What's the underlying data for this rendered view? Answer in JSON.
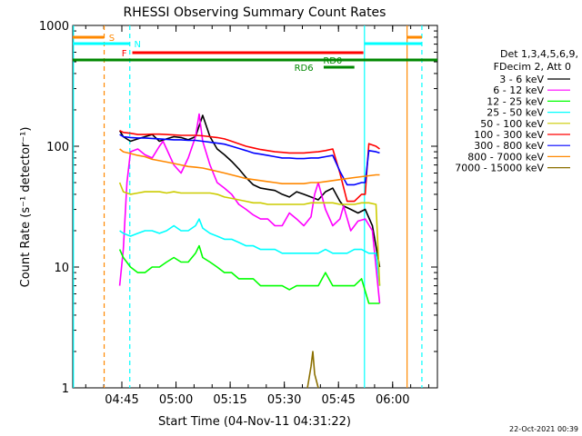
{
  "chart_data": {
    "type": "line",
    "title": "RHESSI Observing Summary Count Rates",
    "xlabel": "Start Time (04-Nov-11 04:31:22)",
    "ylabel": "Count Rate (s⁻¹ detector⁻¹)",
    "ylog": true,
    "ylim": [
      1,
      1000
    ],
    "xlim_minutes_after_0431": [
      0,
      101
    ],
    "x_ticks": [
      {
        "label": "04:45",
        "t": 13.6
      },
      {
        "label": "05:00",
        "t": 28.6
      },
      {
        "label": "05:15",
        "t": 43.6
      },
      {
        "label": "05:30",
        "t": 58.6
      },
      {
        "label": "05:45",
        "t": 73.6
      },
      {
        "label": "06:00",
        "t": 88.6
      }
    ],
    "y_ticks": [
      {
        "label": "1",
        "v": 1
      },
      {
        "label": "10",
        "v": 10
      },
      {
        "label": "100",
        "v": 100
      },
      {
        "label": "1000",
        "v": 1000
      }
    ],
    "legend_header": [
      "Det 1,3,4,5,6,9,",
      "FDecim 2, Att 0"
    ],
    "legend_position": "right",
    "series": [
      {
        "name": "3 - 6 keV",
        "color": "#000000",
        "x": [
          13,
          14,
          16,
          18,
          20,
          22,
          24,
          26,
          28,
          30,
          32,
          34,
          36,
          38,
          40,
          42,
          44,
          46,
          48,
          50,
          52,
          54,
          56,
          58,
          60,
          62,
          64,
          66,
          68,
          70,
          72,
          74,
          75,
          77,
          79,
          81,
          83,
          85
        ],
        "y": [
          135,
          120,
          110,
          115,
          120,
          125,
          110,
          115,
          120,
          118,
          113,
          120,
          180,
          120,
          95,
          85,
          75,
          65,
          55,
          48,
          45,
          44,
          43,
          40,
          38,
          42,
          40,
          38,
          36,
          42,
          45,
          35,
          32,
          30,
          28,
          30,
          22,
          10
        ]
      },
      {
        "name": "6 - 12 keV",
        "color": "#ff00ff",
        "x": [
          13,
          14,
          15,
          16,
          18,
          20,
          22,
          24,
          25,
          26,
          28,
          30,
          32,
          34,
          35,
          36,
          38,
          40,
          42,
          44,
          46,
          48,
          50,
          52,
          54,
          56,
          58,
          60,
          62,
          64,
          66,
          67,
          68,
          70,
          72,
          74,
          75,
          77,
          79,
          81,
          83,
          85
        ],
        "y": [
          7,
          14,
          50,
          90,
          95,
          85,
          80,
          100,
          110,
          95,
          70,
          60,
          80,
          120,
          185,
          110,
          70,
          50,
          45,
          40,
          33,
          30,
          27,
          25,
          25,
          22,
          22,
          28,
          25,
          22,
          26,
          40,
          50,
          30,
          22,
          25,
          32,
          20,
          24,
          25,
          20,
          5
        ]
      },
      {
        "name": "12 - 25 keV",
        "color": "#00ff00",
        "x": [
          13,
          14,
          16,
          18,
          20,
          22,
          24,
          26,
          28,
          30,
          32,
          34,
          35,
          36,
          38,
          40,
          42,
          44,
          46,
          48,
          50,
          52,
          54,
          56,
          58,
          60,
          62,
          64,
          66,
          68,
          70,
          72,
          74,
          76,
          78,
          80,
          82,
          84,
          85
        ],
        "y": [
          14,
          12,
          10,
          9,
          9,
          10,
          10,
          11,
          12,
          11,
          11,
          13,
          15,
          12,
          11,
          10,
          9,
          9,
          8,
          8,
          8,
          7,
          7,
          7,
          7,
          6.5,
          7,
          7,
          7,
          7,
          9,
          7,
          7,
          7,
          7,
          8,
          5,
          5,
          5
        ]
      },
      {
        "name": "25 - 50 keV",
        "color": "#00ffff",
        "x": [
          13,
          14,
          16,
          18,
          20,
          22,
          24,
          26,
          28,
          30,
          32,
          34,
          35,
          36,
          38,
          40,
          42,
          44,
          46,
          48,
          50,
          52,
          54,
          56,
          58,
          60,
          62,
          64,
          66,
          68,
          70,
          72,
          74,
          76,
          78,
          80,
          82,
          84,
          85
        ],
        "y": [
          20,
          19,
          18,
          19,
          20,
          20,
          19,
          20,
          22,
          20,
          20,
          22,
          25,
          21,
          19,
          18,
          17,
          17,
          16,
          15,
          15,
          14,
          14,
          14,
          13,
          13,
          13,
          13,
          13,
          13,
          14,
          13,
          13,
          13,
          14,
          14,
          13,
          13,
          7
        ]
      },
      {
        "name": "50 - 100 keV",
        "color": "#cccc00",
        "x": [
          13,
          14,
          16,
          18,
          20,
          22,
          24,
          26,
          28,
          30,
          32,
          34,
          36,
          38,
          40,
          42,
          44,
          46,
          48,
          50,
          52,
          54,
          56,
          58,
          60,
          62,
          64,
          66,
          68,
          70,
          72,
          74,
          76,
          78,
          80,
          82,
          84,
          85
        ],
        "y": [
          50,
          42,
          40,
          41,
          42,
          42,
          42,
          41,
          42,
          41,
          41,
          41,
          41,
          41,
          40,
          38,
          37,
          36,
          35,
          34,
          34,
          33,
          33,
          33,
          33,
          33,
          33,
          34,
          34,
          34,
          34,
          33,
          33,
          33,
          34,
          34,
          33,
          7
        ]
      },
      {
        "name": "100 - 300 keV",
        "color": "#ff0000",
        "x": [
          13,
          14,
          16,
          18,
          20,
          22,
          24,
          26,
          28,
          30,
          32,
          34,
          36,
          38,
          40,
          42,
          44,
          46,
          48,
          50,
          52,
          54,
          56,
          58,
          60,
          62,
          64,
          66,
          68,
          70,
          72,
          74,
          76,
          78,
          80,
          81,
          82,
          84,
          85
        ],
        "y": [
          135,
          130,
          128,
          125,
          125,
          126,
          126,
          125,
          124,
          123,
          123,
          123,
          122,
          120,
          118,
          115,
          110,
          105,
          100,
          97,
          94,
          92,
          90,
          89,
          88,
          88,
          88,
          89,
          90,
          92,
          95,
          60,
          35,
          35,
          40,
          40,
          105,
          100,
          95
        ]
      },
      {
        "name": "300 - 800 keV",
        "color": "#0000ff",
        "x": [
          13,
          14,
          16,
          18,
          20,
          22,
          24,
          26,
          28,
          30,
          32,
          34,
          36,
          38,
          40,
          42,
          44,
          46,
          48,
          50,
          52,
          54,
          56,
          58,
          60,
          62,
          64,
          66,
          68,
          70,
          72,
          74,
          76,
          78,
          80,
          81,
          82,
          84,
          85
        ],
        "y": [
          125,
          120,
          118,
          117,
          117,
          116,
          115,
          114,
          113,
          113,
          112,
          112,
          110,
          108,
          106,
          104,
          100,
          96,
          92,
          88,
          86,
          84,
          82,
          80,
          80,
          79,
          79,
          80,
          80,
          82,
          84,
          62,
          48,
          48,
          50,
          50,
          92,
          90,
          88
        ]
      },
      {
        "name": "800 - 7000 keV",
        "color": "#ff8800",
        "x": [
          13,
          14,
          16,
          18,
          20,
          22,
          24,
          26,
          28,
          30,
          32,
          34,
          36,
          38,
          40,
          42,
          44,
          46,
          48,
          50,
          52,
          54,
          56,
          58,
          60,
          62,
          64,
          66,
          68,
          70,
          72,
          74,
          76,
          78,
          80,
          82,
          84,
          85
        ],
        "y": [
          95,
          90,
          87,
          84,
          82,
          78,
          76,
          74,
          72,
          70,
          68,
          67,
          66,
          64,
          62,
          60,
          58,
          56,
          54,
          53,
          52,
          51,
          50,
          49,
          49,
          49,
          49,
          50,
          50,
          51,
          52,
          53,
          54,
          55,
          56,
          57,
          58,
          58
        ]
      },
      {
        "name": "7000 - 15000 keV",
        "color": "#8b6f00",
        "x": [
          65,
          66,
          66.5,
          67,
          68
        ],
        "y": [
          1,
          1.5,
          2,
          1.3,
          1
        ]
      }
    ],
    "annotations": [
      {
        "label": "S",
        "color": "#ff8800"
      },
      {
        "label": "N",
        "color": "#00ffff"
      },
      {
        "label": "F",
        "color": "#ff0000"
      },
      {
        "label": "RD0",
        "color": "#008800"
      },
      {
        "label": "RD6",
        "color": "#008800"
      }
    ],
    "footer_date": "22-Oct-2021 00:39"
  }
}
